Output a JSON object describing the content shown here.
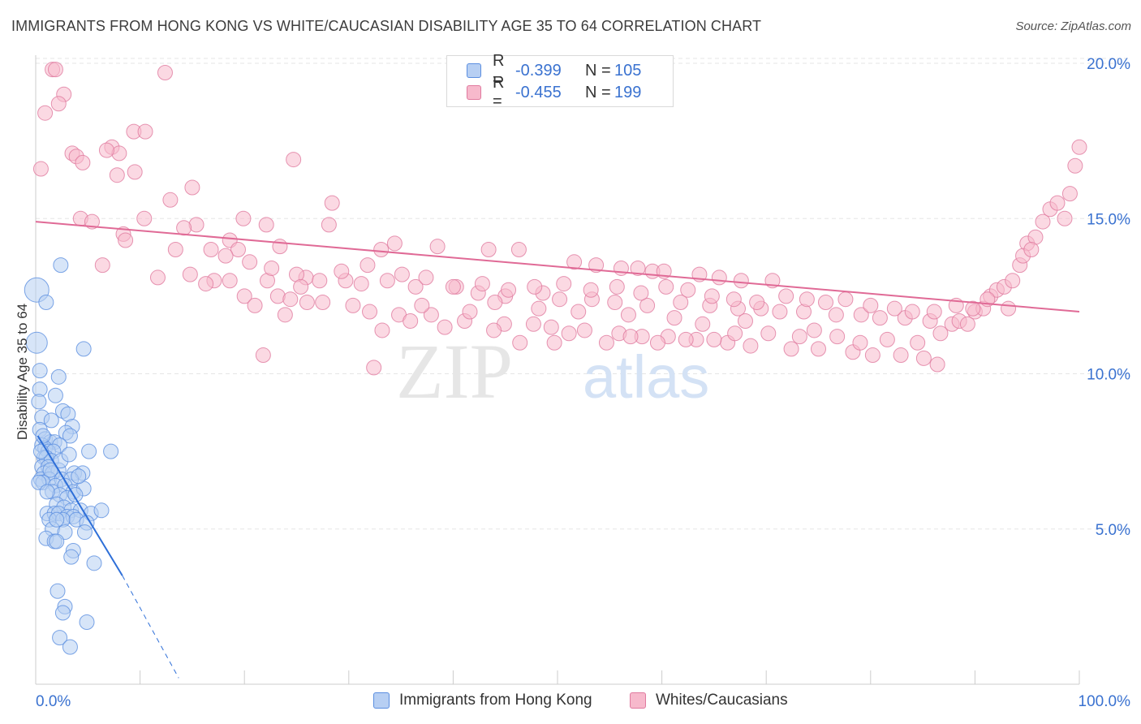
{
  "title": "IMMIGRANTS FROM HONG KONG VS WHITE/CAUCASIAN DISABILITY AGE 35 TO 64 CORRELATION CHART",
  "source": "Source: ZipAtlas.com",
  "watermark": {
    "zip": "ZIP",
    "atlas": "atlas"
  },
  "legend_top": [
    {
      "r_label": "R =",
      "r_value": "-0.399",
      "n_label": "N =",
      "n_value": "105"
    },
    {
      "r_label": "R =",
      "r_value": "-0.455",
      "n_label": "N =",
      "n_value": "199"
    }
  ],
  "chart_data": {
    "type": "scatter",
    "xlabel": "",
    "ylabel": "Disability Age 35 to 64",
    "xlim": [
      0,
      100
    ],
    "ylim": [
      0,
      21
    ],
    "x_tick_labels": [
      "0.0%",
      "100.0%"
    ],
    "y_ticks": [
      5,
      10,
      15,
      20
    ],
    "y_tick_labels": [
      "5.0%",
      "10.0%",
      "15.0%",
      "20.0%"
    ],
    "grid": true,
    "legend_position": "bottom",
    "series": [
      {
        "name": "Immigrants from Hong Kong",
        "color": "#5b8ee0",
        "fill": "#b7cff3",
        "trend": {
          "x1": 0.2,
          "y1": 8.0,
          "x2": 8.3,
          "y2": 3.5,
          "dash_to_x": 13.7,
          "dash_to_y": 0.2
        },
        "points": [
          [
            0.1,
            12.7
          ],
          [
            0.1,
            11.0
          ],
          [
            1.0,
            12.3
          ],
          [
            2.4,
            13.5
          ],
          [
            4.6,
            10.8
          ],
          [
            0.4,
            10.1
          ],
          [
            2.2,
            9.9
          ],
          [
            0.4,
            9.5
          ],
          [
            1.9,
            9.3
          ],
          [
            0.3,
            9.1
          ],
          [
            0.6,
            8.6
          ],
          [
            2.6,
            8.8
          ],
          [
            3.1,
            8.7
          ],
          [
            1.5,
            8.5
          ],
          [
            3.5,
            8.3
          ],
          [
            0.4,
            8.2
          ],
          [
            2.9,
            8.1
          ],
          [
            3.3,
            8.0
          ],
          [
            0.9,
            7.9
          ],
          [
            1.4,
            7.8
          ],
          [
            0.6,
            7.7
          ],
          [
            1.8,
            7.8
          ],
          [
            2.3,
            7.7
          ],
          [
            0.9,
            7.6
          ],
          [
            1.2,
            7.5
          ],
          [
            1.7,
            7.5
          ],
          [
            5.1,
            7.5
          ],
          [
            7.2,
            7.5
          ],
          [
            0.8,
            7.3
          ],
          [
            1.0,
            7.3
          ],
          [
            1.5,
            7.2
          ],
          [
            0.6,
            7.0
          ],
          [
            1.2,
            7.0
          ],
          [
            2.2,
            6.9
          ],
          [
            0.8,
            6.8
          ],
          [
            1.6,
            6.8
          ],
          [
            3.7,
            6.8
          ],
          [
            4.5,
            6.8
          ],
          [
            0.5,
            6.6
          ],
          [
            1.3,
            6.6
          ],
          [
            2.5,
            6.6
          ],
          [
            3.4,
            6.6
          ],
          [
            0.7,
            6.5
          ],
          [
            1.9,
            6.4
          ],
          [
            2.8,
            6.4
          ],
          [
            3.6,
            6.2
          ],
          [
            4.6,
            6.3
          ],
          [
            1.6,
            6.2
          ],
          [
            2.3,
            6.1
          ],
          [
            3.0,
            6.0
          ],
          [
            3.8,
            6.1
          ],
          [
            2.0,
            5.8
          ],
          [
            2.7,
            5.7
          ],
          [
            3.4,
            5.6
          ],
          [
            4.3,
            5.6
          ],
          [
            1.1,
            5.5
          ],
          [
            1.8,
            5.5
          ],
          [
            2.2,
            5.5
          ],
          [
            3.0,
            5.4
          ],
          [
            3.6,
            5.4
          ],
          [
            5.3,
            5.5
          ],
          [
            6.3,
            5.6
          ],
          [
            1.3,
            5.3
          ],
          [
            2.6,
            5.3
          ],
          [
            3.9,
            5.3
          ],
          [
            4.9,
            5.2
          ],
          [
            1.6,
            5.0
          ],
          [
            2.8,
            4.9
          ],
          [
            4.7,
            4.9
          ],
          [
            1.0,
            4.7
          ],
          [
            1.8,
            4.6
          ],
          [
            2.0,
            4.6
          ],
          [
            3.6,
            4.3
          ],
          [
            3.4,
            4.1
          ],
          [
            5.6,
            3.9
          ],
          [
            2.1,
            3.0
          ],
          [
            2.8,
            2.5
          ],
          [
            2.6,
            2.3
          ],
          [
            4.9,
            2.0
          ],
          [
            2.3,
            1.5
          ],
          [
            3.3,
            1.2
          ],
          [
            0.5,
            7.5
          ],
          [
            0.3,
            6.5
          ],
          [
            0.7,
            8.0
          ],
          [
            1.1,
            6.2
          ],
          [
            2.4,
            7.2
          ],
          [
            3.2,
            7.4
          ],
          [
            4.1,
            6.7
          ],
          [
            2.0,
            5.3
          ],
          [
            1.4,
            6.9
          ]
        ]
      },
      {
        "name": "Whites/Caucasians",
        "color": "#e07a9f",
        "fill": "#f7b9cc",
        "trend": {
          "x1": 0,
          "y1": 14.9,
          "x2": 100,
          "y2": 12.0
        },
        "points": [
          [
            1.6,
            19.8
          ],
          [
            1.9,
            19.8
          ],
          [
            12.4,
            19.7
          ],
          [
            2.7,
            19.0
          ],
          [
            2.2,
            18.7
          ],
          [
            0.9,
            18.4
          ],
          [
            9.4,
            17.8
          ],
          [
            10.5,
            17.8
          ],
          [
            7.3,
            17.3
          ],
          [
            8.0,
            17.1
          ],
          [
            3.5,
            17.1
          ],
          [
            3.9,
            17.0
          ],
          [
            6.8,
            17.2
          ],
          [
            24.7,
            16.9
          ],
          [
            4.5,
            16.8
          ],
          [
            0.5,
            16.6
          ],
          [
            9.5,
            16.5
          ],
          [
            7.8,
            16.4
          ],
          [
            15.0,
            16.0
          ],
          [
            12.9,
            15.6
          ],
          [
            28.4,
            15.5
          ],
          [
            10.4,
            15.0
          ],
          [
            4.3,
            15.0
          ],
          [
            15.4,
            14.8
          ],
          [
            19.9,
            15.0
          ],
          [
            22.1,
            14.8
          ],
          [
            14.2,
            14.7
          ],
          [
            5.4,
            14.9
          ],
          [
            28.1,
            14.8
          ],
          [
            8.4,
            14.5
          ],
          [
            18.6,
            14.3
          ],
          [
            8.6,
            14.3
          ],
          [
            13.4,
            14.0
          ],
          [
            19.4,
            14.0
          ],
          [
            23.4,
            14.1
          ],
          [
            33.1,
            14.0
          ],
          [
            34.4,
            14.2
          ],
          [
            38.5,
            14.1
          ],
          [
            43.4,
            14.0
          ],
          [
            46.3,
            14.0
          ],
          [
            51.6,
            13.6
          ],
          [
            53.7,
            13.5
          ],
          [
            56.1,
            13.4
          ],
          [
            57.7,
            13.4
          ],
          [
            59.1,
            13.3
          ],
          [
            60.2,
            13.3
          ],
          [
            63.6,
            13.2
          ],
          [
            65.5,
            13.1
          ],
          [
            67.6,
            13.0
          ],
          [
            70.6,
            13.0
          ],
          [
            6.4,
            13.5
          ],
          [
            11.7,
            13.1
          ],
          [
            14.8,
            13.2
          ],
          [
            17.1,
            13.0
          ],
          [
            18.6,
            13.0
          ],
          [
            22.2,
            13.0
          ],
          [
            25.9,
            13.1
          ],
          [
            29.7,
            13.0
          ],
          [
            31.2,
            12.9
          ],
          [
            33.7,
            13.0
          ],
          [
            36.4,
            12.8
          ],
          [
            40.3,
            12.8
          ],
          [
            42.4,
            12.6
          ],
          [
            45.0,
            12.5
          ],
          [
            48.6,
            12.6
          ],
          [
            50.2,
            12.4
          ],
          [
            53.3,
            12.4
          ],
          [
            55.5,
            12.3
          ],
          [
            58.6,
            12.2
          ],
          [
            61.8,
            12.3
          ],
          [
            64.6,
            12.2
          ],
          [
            67.3,
            12.1
          ],
          [
            69.5,
            12.1
          ],
          [
            71.3,
            12.0
          ],
          [
            73.6,
            12.0
          ],
          [
            76.7,
            11.9
          ],
          [
            79.1,
            11.9
          ],
          [
            80.9,
            11.8
          ],
          [
            83.3,
            11.8
          ],
          [
            85.7,
            11.7
          ],
          [
            16.3,
            12.9
          ],
          [
            20.0,
            12.5
          ],
          [
            23.2,
            12.5
          ],
          [
            26.0,
            12.3
          ],
          [
            30.4,
            12.2
          ],
          [
            32.0,
            12.0
          ],
          [
            34.8,
            11.9
          ],
          [
            37.9,
            11.9
          ],
          [
            41.1,
            11.7
          ],
          [
            44.9,
            11.6
          ],
          [
            47.7,
            11.6
          ],
          [
            49.4,
            11.5
          ],
          [
            52.6,
            11.4
          ],
          [
            55.9,
            11.3
          ],
          [
            58.1,
            11.2
          ],
          [
            60.6,
            11.2
          ],
          [
            63.3,
            11.1
          ],
          [
            66.3,
            11.0
          ],
          [
            68.5,
            10.9
          ],
          [
            72.4,
            10.8
          ],
          [
            75.0,
            10.8
          ],
          [
            78.3,
            10.7
          ],
          [
            80.2,
            10.6
          ],
          [
            82.9,
            10.6
          ],
          [
            85.1,
            10.5
          ],
          [
            86.4,
            10.3
          ],
          [
            21.0,
            12.2
          ],
          [
            24.4,
            12.4
          ],
          [
            27.5,
            12.3
          ],
          [
            33.2,
            11.4
          ],
          [
            35.9,
            11.7
          ],
          [
            39.2,
            11.5
          ],
          [
            43.9,
            11.4
          ],
          [
            46.4,
            11.0
          ],
          [
            49.7,
            11.0
          ],
          [
            51.1,
            11.3
          ],
          [
            54.7,
            11.0
          ],
          [
            57.0,
            11.2
          ],
          [
            59.6,
            11.0
          ],
          [
            62.3,
            11.1
          ],
          [
            65.0,
            11.1
          ],
          [
            67.0,
            11.3
          ],
          [
            70.2,
            11.3
          ],
          [
            73.2,
            11.2
          ],
          [
            74.6,
            11.4
          ],
          [
            76.8,
            11.2
          ],
          [
            79.0,
            11.0
          ],
          [
            81.6,
            11.1
          ],
          [
            84.5,
            11.0
          ],
          [
            86.7,
            11.3
          ],
          [
            87.8,
            11.6
          ],
          [
            88.5,
            11.7
          ],
          [
            89.3,
            11.6
          ],
          [
            90.0,
            12.0
          ],
          [
            90.8,
            12.1
          ],
          [
            91.5,
            12.5
          ],
          [
            92.1,
            12.7
          ],
          [
            92.8,
            12.8
          ],
          [
            93.6,
            13.0
          ],
          [
            94.3,
            13.5
          ],
          [
            95.0,
            14.2
          ],
          [
            95.8,
            14.4
          ],
          [
            96.5,
            14.9
          ],
          [
            97.2,
            15.3
          ],
          [
            97.9,
            15.5
          ],
          [
            98.6,
            15.0
          ],
          [
            99.1,
            15.8
          ],
          [
            99.6,
            16.7
          ],
          [
            100.0,
            17.3
          ],
          [
            94.6,
            13.8
          ],
          [
            95.4,
            14.0
          ],
          [
            93.2,
            12.1
          ],
          [
            91.2,
            12.4
          ],
          [
            89.8,
            12.1
          ],
          [
            88.2,
            12.2
          ],
          [
            86.1,
            12.0
          ],
          [
            84.0,
            12.0
          ],
          [
            82.3,
            12.1
          ],
          [
            80.0,
            12.2
          ],
          [
            77.6,
            12.4
          ],
          [
            75.7,
            12.3
          ],
          [
            73.9,
            12.4
          ],
          [
            71.9,
            12.5
          ],
          [
            69.1,
            12.3
          ],
          [
            66.9,
            12.4
          ],
          [
            64.8,
            12.5
          ],
          [
            62.5,
            12.7
          ],
          [
            60.4,
            12.8
          ],
          [
            58.0,
            12.6
          ],
          [
            55.7,
            12.8
          ],
          [
            53.2,
            12.7
          ],
          [
            50.6,
            12.9
          ],
          [
            47.8,
            12.8
          ],
          [
            45.3,
            12.7
          ],
          [
            42.8,
            12.9
          ],
          [
            40.0,
            12.8
          ],
          [
            37.4,
            13.1
          ],
          [
            35.1,
            13.2
          ],
          [
            31.8,
            13.5
          ],
          [
            29.3,
            13.3
          ],
          [
            27.2,
            13.0
          ],
          [
            25.0,
            13.2
          ],
          [
            22.6,
            13.4
          ],
          [
            20.5,
            13.6
          ],
          [
            18.2,
            13.8
          ],
          [
            16.8,
            14.0
          ],
          [
            25.4,
            12.8
          ],
          [
            23.9,
            11.9
          ],
          [
            21.8,
            10.6
          ],
          [
            32.4,
            10.2
          ],
          [
            37.0,
            12.2
          ],
          [
            41.6,
            12.0
          ],
          [
            44.0,
            12.3
          ],
          [
            48.2,
            12.1
          ],
          [
            52.0,
            12.0
          ],
          [
            56.8,
            11.9
          ],
          [
            61.2,
            11.8
          ],
          [
            63.9,
            11.6
          ],
          [
            68.0,
            11.7
          ]
        ]
      }
    ]
  }
}
